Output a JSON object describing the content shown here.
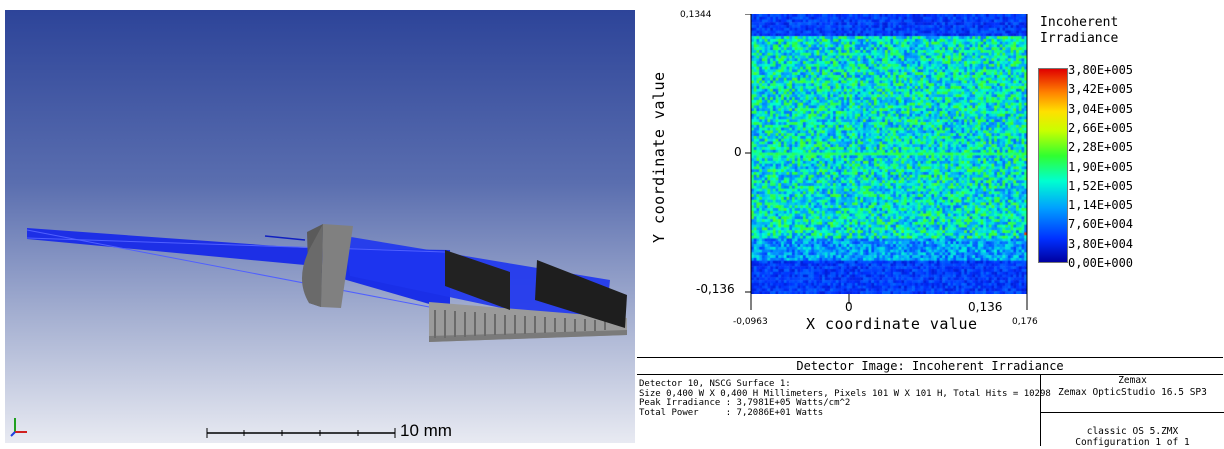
{
  "viewport": {
    "scale_label": "10 mm"
  },
  "irradiance": {
    "title_line1": "Incoherent",
    "title_line2": "Irradiance",
    "colorbar_ticks": [
      "3,80E+005",
      "3,42E+005",
      "3,04E+005",
      "2,66E+005",
      "2,28E+005",
      "1,90E+005",
      "1,52E+005",
      "1,14E+005",
      "7,60E+004",
      "3,80E+004",
      "0,00E+000"
    ],
    "x_axis_label": "X coordinate value",
    "y_axis_label": "Y coordinate value",
    "x_ticks": [
      "-0,0963",
      "0",
      "0,136",
      "0,176"
    ],
    "y_ticks": [
      "0,1344",
      "0",
      "-0,136"
    ]
  },
  "info": {
    "title": "Detector Image: Incoherent Irradiance",
    "line1": "Detector 10, NSCG Surface 1:",
    "line2": "Size 0,400 W X 0,400 H Millimeters, Pixels 101 W X 101 H, Total Hits = 10298",
    "line3": "Peak Irradiance : 3,7981E+05 Watts/cm^2",
    "line4": "Total Power     : 7,2086E+01 Watts",
    "vendor": "Zemax",
    "product": "Zemax OpticStudio 16.5 SP3",
    "file": "classic OS 5.ZMX",
    "configuration": "Configuration 1 of 1"
  }
}
